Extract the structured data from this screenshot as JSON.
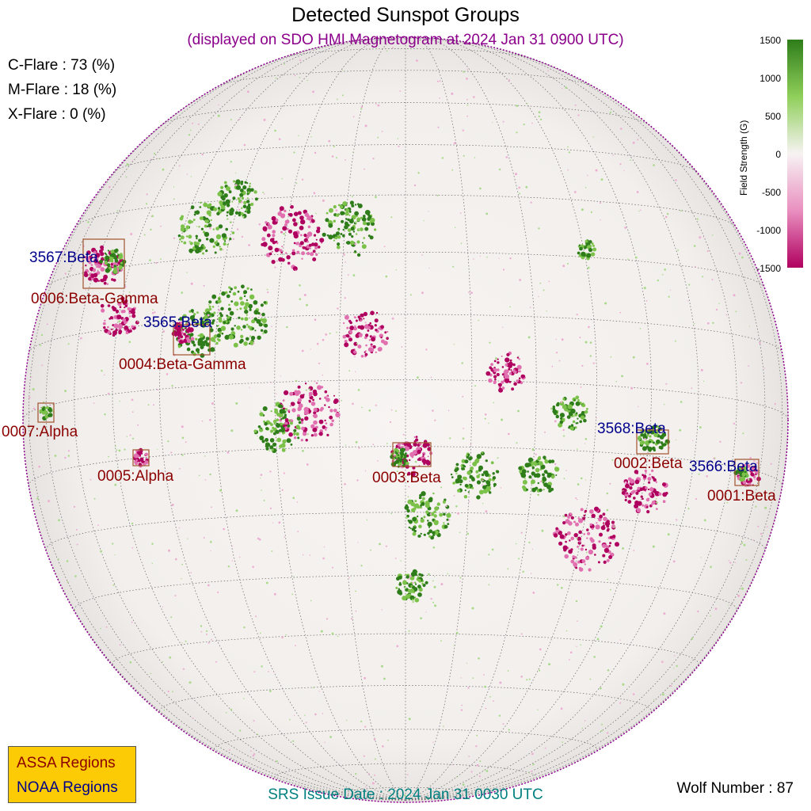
{
  "title": "Detected Sunspot Groups",
  "subtitle": "(displayed on SDO HMI Magnetogram at 2024 Jan 31 0900 UTC)",
  "flare_probabilities": [
    {
      "label": "C-Flare : 73 (%)"
    },
    {
      "label": "M-Flare : 18 (%)"
    },
    {
      "label": "X-Flare :  0 (%)"
    }
  ],
  "colorbar": {
    "title": "Field Strength (G)",
    "ticks": [
      "1500",
      "1000",
      "500",
      "0",
      "-500",
      "-1000",
      "-1500"
    ],
    "range": [
      -1500,
      1500
    ],
    "colors": {
      "positive": "#2e7d1a",
      "zero": "#f7f3f3",
      "negative": "#b0005f"
    }
  },
  "legend": {
    "assa": "ASSA Regions",
    "noaa": "NOAA Regions"
  },
  "footer": "SRS Issue Date : 2024 Jan 31 0030 UTC",
  "wolf_number": "Wolf Number : 87",
  "colors": {
    "subtitle": "#8b008b",
    "assa": "#8b0000",
    "noaa": "#00008b",
    "footer": "#008080",
    "box": "#a0522d",
    "legend_bg": "#fccb06"
  },
  "noaa_regions": [
    {
      "label": "3567:Beta"
    },
    {
      "label": "3565:Beta"
    },
    {
      "label": "3568:Beta"
    },
    {
      "label": "3566:Beta"
    }
  ],
  "assa_regions": [
    {
      "label": "0006:Beta-Gamma"
    },
    {
      "label": "0004:Beta-Gamma"
    },
    {
      "label": "0007:Alpha"
    },
    {
      "label": "0005:Alpha"
    },
    {
      "label": "0003:Beta"
    },
    {
      "label": "0002:Beta"
    },
    {
      "label": "0001:Beta"
    }
  ]
}
